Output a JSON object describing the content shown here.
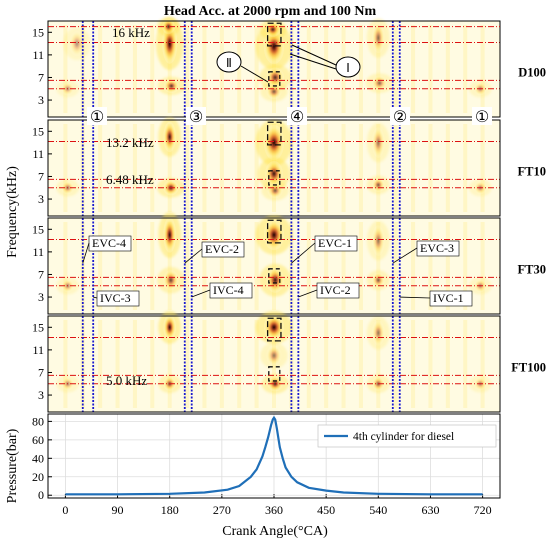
{
  "chart_data": [
    {
      "type": "heatmap",
      "title": "Head Acc. at 2000 rpm and 100 Nm",
      "ylabel": "Frequency(kHz)",
      "x_range": [
        -30,
        750
      ],
      "ylim": [
        0,
        17
      ],
      "yticks": [
        3,
        7,
        11,
        15
      ],
      "grid": false,
      "colormap": [
        "#ffffff",
        "#fff6b0",
        "#ffd84a",
        "#f39a18",
        "#c8400c",
        "#6a0d05",
        "#1e0200"
      ],
      "valve_event_lines": [
        30,
        48,
        206,
        218,
        390,
        402,
        565,
        577
      ],
      "frequency_bands_khz": [
        16,
        13.2,
        6.48,
        5.0
      ],
      "panels": [
        {
          "name": "D100",
          "hotspots": [
            {
              "ca": 180,
              "f": 13,
              "w": 6,
              "h": 4,
              "i": 1.0
            },
            {
              "ca": 178,
              "f": 16,
              "w": 5,
              "h": 1.5,
              "i": 0.8
            },
            {
              "ca": 183,
              "f": 5.5,
              "w": 6,
              "h": 1.4,
              "i": 0.75
            },
            {
              "ca": 360,
              "f": 12.5,
              "w": 8,
              "h": 3.5,
              "i": 1.0
            },
            {
              "ca": 358,
              "f": 15.5,
              "w": 6,
              "h": 1.5,
              "i": 0.85
            },
            {
              "ca": 362,
              "f": 7,
              "w": 7,
              "h": 2,
              "i": 0.8
            },
            {
              "ca": 360,
              "f": 4.5,
              "w": 6,
              "h": 1.5,
              "i": 0.6
            },
            {
              "ca": 540,
              "f": 14,
              "w": 5,
              "h": 3,
              "i": 0.55
            },
            {
              "ca": 542,
              "f": 6,
              "w": 6,
              "h": 1.5,
              "i": 0.55
            },
            {
              "ca": 20,
              "f": 13,
              "w": 6,
              "h": 2.5,
              "i": 0.4
            },
            {
              "ca": 4,
              "f": 5,
              "w": 5,
              "h": 1.3,
              "i": 0.4
            },
            {
              "ca": 716,
              "f": 5,
              "w": 5,
              "h": 1.3,
              "i": 0.45
            }
          ]
        },
        {
          "name": "FT10",
          "hotspots": [
            {
              "ca": 180,
              "f": 14,
              "w": 5,
              "h": 3,
              "i": 0.9
            },
            {
              "ca": 182,
              "f": 5,
              "w": 6,
              "h": 1.5,
              "i": 0.85
            },
            {
              "ca": 360,
              "f": 13,
              "w": 8,
              "h": 3.5,
              "i": 1.0
            },
            {
              "ca": 360,
              "f": 7.5,
              "w": 7,
              "h": 2.5,
              "i": 0.9
            },
            {
              "ca": 362,
              "f": 4.5,
              "w": 6,
              "h": 1.5,
              "i": 0.6
            },
            {
              "ca": 540,
              "f": 13,
              "w": 5,
              "h": 3,
              "i": 0.5
            },
            {
              "ca": 540,
              "f": 5.5,
              "w": 5,
              "h": 1.4,
              "i": 0.6
            },
            {
              "ca": 4,
              "f": 5,
              "w": 5,
              "h": 1.3,
              "i": 0.5
            },
            {
              "ca": 716,
              "f": 5,
              "w": 5,
              "h": 1.3,
              "i": 0.45
            }
          ]
        },
        {
          "name": "FT30",
          "hotspots": [
            {
              "ca": 180,
              "f": 14,
              "w": 5,
              "h": 3.5,
              "i": 0.95
            },
            {
              "ca": 182,
              "f": 6,
              "w": 6,
              "h": 2,
              "i": 0.7
            },
            {
              "ca": 360,
              "f": 14,
              "w": 8,
              "h": 3,
              "i": 1.0
            },
            {
              "ca": 362,
              "f": 6,
              "w": 7,
              "h": 2.5,
              "i": 0.9
            },
            {
              "ca": 540,
              "f": 13,
              "w": 5,
              "h": 3,
              "i": 0.5
            },
            {
              "ca": 540,
              "f": 6,
              "w": 5,
              "h": 1.5,
              "i": 0.6
            },
            {
              "ca": 4,
              "f": 5,
              "w": 5,
              "h": 1.3,
              "i": 0.45
            },
            {
              "ca": 716,
              "f": 5,
              "w": 5,
              "h": 1.3,
              "i": 0.45
            }
          ]
        },
        {
          "name": "FT100",
          "hotspots": [
            {
              "ca": 180,
              "f": 15,
              "w": 5,
              "h": 2.5,
              "i": 0.95
            },
            {
              "ca": 180,
              "f": 5,
              "w": 5,
              "h": 1.4,
              "i": 0.7
            },
            {
              "ca": 360,
              "f": 15,
              "w": 8,
              "h": 2.5,
              "i": 1.0
            },
            {
              "ca": 360,
              "f": 10,
              "w": 6,
              "h": 2,
              "i": 0.5
            },
            {
              "ca": 362,
              "f": 5,
              "w": 6,
              "h": 1.5,
              "i": 0.85
            },
            {
              "ca": 540,
              "f": 14,
              "w": 5,
              "h": 2.5,
              "i": 0.5
            },
            {
              "ca": 540,
              "f": 5,
              "w": 5,
              "h": 1.4,
              "i": 0.6
            },
            {
              "ca": 4,
              "f": 5,
              "w": 5,
              "h": 1.3,
              "i": 0.45
            },
            {
              "ca": 716,
              "f": 5,
              "w": 5,
              "h": 1.3,
              "i": 0.45
            }
          ]
        }
      ],
      "cylinder_markers": [
        "①",
        "③",
        "④",
        "②",
        "①"
      ],
      "cylinder_marker_ca": [
        27,
        210,
        396,
        571,
        720
      ],
      "region_markers": [
        "Ⅰ",
        "Ⅱ"
      ],
      "freq_labels": [
        "16 kHz",
        "13.2 kHz",
        "6.48 kHz",
        "5.0 kHz"
      ],
      "valve_labels": [
        {
          "text": "EVC-4",
          "ca": 30,
          "f": 9
        },
        {
          "text": "IVC-3",
          "ca": 48,
          "f": 3
        },
        {
          "text": "EVC-2",
          "ca": 206,
          "f": 9
        },
        {
          "text": "IVC-4",
          "ca": 218,
          "f": 3
        },
        {
          "text": "EVC-1",
          "ca": 390,
          "f": 9
        },
        {
          "text": "IVC-2",
          "ca": 402,
          "f": 3
        },
        {
          "text": "EVC-3",
          "ca": 565,
          "f": 9
        },
        {
          "text": "IVC-1",
          "ca": 577,
          "f": 3
        }
      ]
    },
    {
      "type": "line",
      "xlabel": "Crank Angle(°CA)",
      "ylabel": "Pressure(bar)",
      "xlim": [
        -30,
        750
      ],
      "ylim": [
        -3,
        88
      ],
      "xticks": [
        0,
        90,
        180,
        270,
        360,
        450,
        540,
        630,
        720
      ],
      "yticks": [
        0,
        20,
        40,
        60,
        80
      ],
      "grid": true,
      "legend_position": "top-right",
      "series": [
        {
          "name": "4th cylinder for diesel",
          "color": "#1f6fb8",
          "x": [
            0,
            90,
            180,
            240,
            280,
            300,
            320,
            330,
            340,
            345,
            350,
            355,
            358,
            360,
            362,
            365,
            370,
            375,
            380,
            390,
            400,
            420,
            450,
            480,
            540,
            630,
            720
          ],
          "y": [
            1,
            1,
            1.5,
            3,
            6,
            10,
            20,
            28,
            42,
            52,
            63,
            76,
            82,
            84,
            82,
            72,
            52,
            40,
            30,
            20,
            14,
            8,
            5,
            3,
            1.5,
            1,
            1
          ]
        }
      ]
    }
  ]
}
